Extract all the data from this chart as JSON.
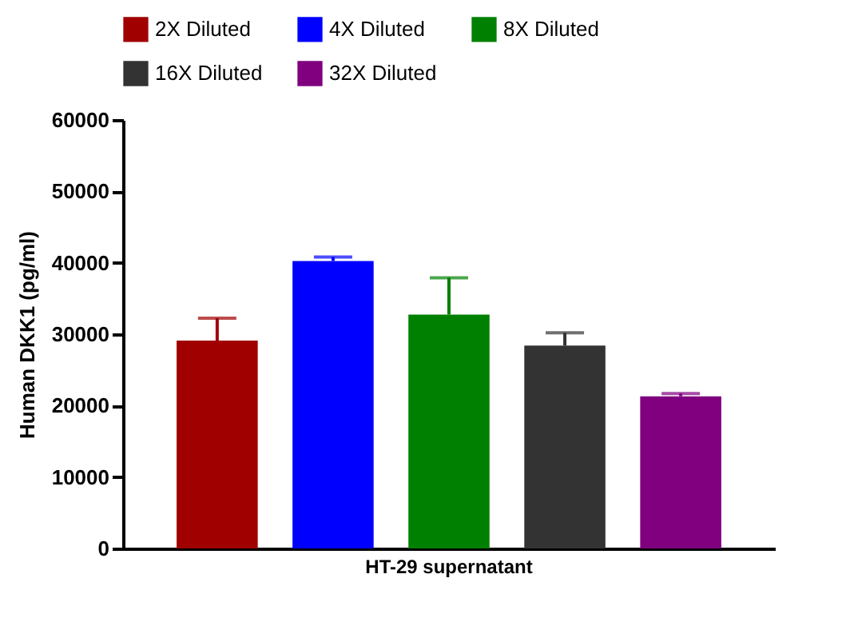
{
  "chart_data": {
    "type": "bar",
    "ylabel": "Human DKK1 (pg/ml)",
    "categories": [
      "HT-29 supernatant"
    ],
    "series": [
      {
        "name": "2X Diluted",
        "color": "#a00000",
        "values": [
          29100
        ],
        "errors": [
          [
            29100,
            32250
          ]
        ]
      },
      {
        "name": "4X Diluted",
        "color": "#0000ff",
        "values": [
          40250
        ],
        "errors": [
          [
            40250,
            40800
          ]
        ]
      },
      {
        "name": "8X Diluted",
        "color": "#008000",
        "values": [
          32750
        ],
        "errors": [
          [
            32750,
            37900
          ]
        ]
      },
      {
        "name": "16X Diluted",
        "color": "#333333",
        "values": [
          28400
        ],
        "errors": [
          [
            28400,
            30200
          ]
        ]
      },
      {
        "name": "32X Diluted",
        "color": "#800080",
        "values": [
          21300
        ],
        "errors": [
          [
            21300,
            21700
          ]
        ]
      }
    ],
    "ylim": [
      0,
      60000
    ],
    "yticks": [
      0,
      10000,
      20000,
      30000,
      40000,
      50000,
      60000
    ],
    "grid": false,
    "legend": "top"
  }
}
